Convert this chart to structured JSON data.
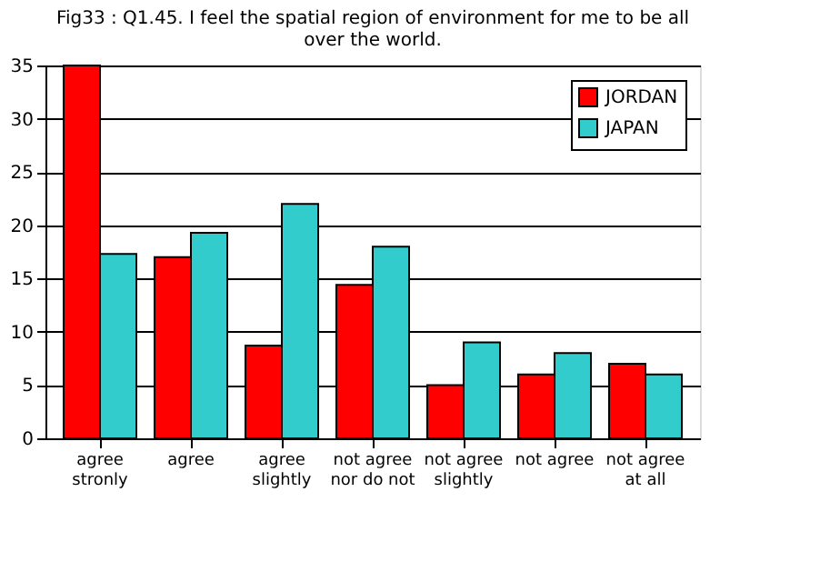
{
  "chart_data": {
    "type": "bar",
    "title": "Fig33 : Q1.45.  I feel the spatial region of environment for me to be all over the world.",
    "categories": [
      "agree stronly",
      "agree",
      "agree slightly",
      "not agree nor do not",
      "not agree slightly",
      "not agree",
      "not agree at all"
    ],
    "series": [
      {
        "name": "JORDAN",
        "color": "#ff0000",
        "values": [
          35,
          17,
          8.7,
          14.4,
          5,
          6,
          7
        ]
      },
      {
        "name": "JAPAN",
        "color": "#33cccc",
        "values": [
          17.3,
          19.3,
          22,
          18,
          9,
          8,
          6
        ]
      }
    ],
    "ylim": [
      0,
      35
    ],
    "yticks": [
      0,
      5,
      10,
      15,
      20,
      25,
      30,
      35
    ],
    "grid": "y",
    "legend": "top right"
  }
}
